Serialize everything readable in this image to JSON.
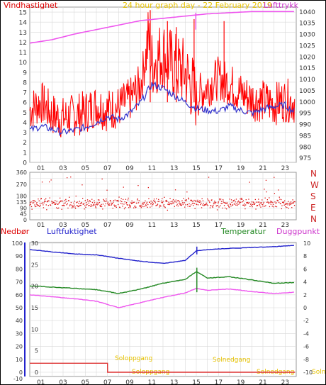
{
  "colors": {
    "wind_speed": "#ff0000",
    "wind_avg": "#3333cc",
    "pressure": "#ee55ee",
    "direction": "#dd1111",
    "humidity": "#2222cc",
    "temperature": "#228822",
    "dewpoint": "#ee55ee",
    "precip": "#2222cc",
    "sun_annotation": "#e6c200",
    "grid": "#d8d8d8"
  },
  "chart_data": [
    {
      "type": "line",
      "title": "24 hour graph day - 22 February 2019",
      "ylabel_left": "Vindhastighet",
      "ylabel_right": "Lufttrykk",
      "left_ticks": [
        "15",
        "14",
        "13",
        "12",
        "11",
        "10",
        "9",
        "8",
        "7",
        "6",
        "5",
        "4",
        "3",
        "2",
        "1",
        "0"
      ],
      "right_ticks": [
        "1040",
        "1035",
        "1030",
        "1025",
        "1020",
        "1015",
        "1010",
        "1005",
        "1000",
        "995",
        "990",
        "985",
        "980",
        "975"
      ],
      "x_ticks": [
        "01",
        "03",
        "05",
        "07",
        "09",
        "11",
        "13",
        "15",
        "17",
        "19",
        "21",
        "23"
      ],
      "ylim_left": [
        0,
        15.5
      ],
      "ylim_right": [
        973,
        1042
      ],
      "series": [
        {
          "name": "Vindhastighet",
          "x": [
            0,
            1,
            2,
            3,
            4,
            5,
            6,
            7,
            8,
            9,
            10,
            10.7,
            11,
            12,
            13,
            14,
            15,
            16,
            17,
            18,
            19,
            20,
            21,
            22,
            23,
            23.9
          ],
          "values": [
            5.0,
            5.8,
            4.6,
            4.2,
            4.5,
            4.8,
            5.5,
            5.0,
            5.3,
            6.0,
            7.6,
            12.0,
            9.5,
            10.5,
            9.2,
            8.6,
            6.2,
            7.4,
            8.2,
            7.6,
            6.7,
            6.1,
            5.9,
            5.6,
            6.0,
            5.8
          ]
        },
        {
          "name": "Vindgjennomsnitt",
          "x": [
            0,
            1,
            2,
            3,
            4,
            5,
            6,
            7,
            8,
            9,
            10,
            11,
            12,
            13,
            14,
            15,
            16,
            17,
            18,
            19,
            20,
            21,
            22,
            23,
            23.9
          ],
          "values": [
            3.2,
            3.6,
            3.3,
            3.0,
            3.2,
            3.5,
            4.0,
            4.6,
            4.3,
            4.9,
            6.0,
            7.8,
            7.4,
            6.7,
            6.0,
            5.4,
            5.2,
            5.1,
            5.6,
            5.2,
            4.9,
            5.3,
            5.6,
            5.7,
            5.0
          ]
        },
        {
          "name": "Lufttrykk",
          "x": [
            0,
            2,
            4,
            6,
            8,
            10,
            12,
            14,
            16,
            18,
            20,
            22,
            23.9
          ],
          "values": [
            1026,
            1027.5,
            1030,
            1032,
            1034,
            1036,
            1037,
            1038,
            1039,
            1039.5,
            1040,
            1040,
            1040
          ]
        }
      ]
    },
    {
      "type": "scatter",
      "ylabel": "Vindretning",
      "y_ticks": [
        "360",
        "270",
        "180",
        "135",
        "90",
        "45",
        "0"
      ],
      "direction_labels": [
        "N",
        "W",
        "S",
        "E",
        "N"
      ],
      "ylim": [
        0,
        360
      ],
      "x_ticks": [
        "01",
        "03",
        "05",
        "07",
        "09",
        "11",
        "13",
        "15",
        "17",
        "19",
        "21",
        "23"
      ],
      "band_center_deg": 125,
      "band_spread_deg": 40
    },
    {
      "type": "line",
      "ylabels": [
        "Nedbør",
        "Luftfuktighet",
        "Temperatur",
        "Duggpunkt"
      ],
      "precip_ticks": [
        "100",
        "90",
        "80",
        "70",
        "60",
        "50",
        "40",
        "30",
        "20",
        "10",
        "0",
        "-10"
      ],
      "humidity_ticks": [
        "30",
        "25",
        "20",
        "15",
        "10",
        "5",
        "0"
      ],
      "temp_ticks": [
        "10",
        "8",
        "6",
        "4",
        "2",
        "0",
        "-2",
        "-4",
        "-6",
        "-8",
        "-10"
      ],
      "x_ticks": [
        "01",
        "03",
        "05",
        "07",
        "09",
        "11",
        "13",
        "15",
        "17",
        "19",
        "21",
        "23"
      ],
      "annotations": [
        "Soloppgang",
        "Solnedgang",
        "Soloppgang",
        "Solnedgang",
        "Solnedgang"
      ],
      "series": [
        {
          "name": "Luftfuktighet",
          "x": [
            0,
            2,
            4,
            6,
            8,
            10,
            12,
            14,
            15,
            16,
            18,
            20,
            22,
            23.9
          ],
          "values": [
            28.5,
            28,
            27.5,
            27.3,
            26.5,
            25.8,
            25.3,
            26.0,
            28.2,
            28.5,
            28.8,
            29.0,
            29.2,
            29.5
          ]
        },
        {
          "name": "Temperatur",
          "x": [
            0,
            2,
            4,
            6,
            8,
            10,
            12,
            14,
            15,
            16,
            18,
            20,
            22,
            23.9
          ],
          "values": [
            3.4,
            3.2,
            3.0,
            2.8,
            2.2,
            2.9,
            3.8,
            4.4,
            5.6,
            4.6,
            4.8,
            4.3,
            3.8,
            3.9
          ]
        },
        {
          "name": "Duggpunkt",
          "x": [
            0,
            2,
            4,
            6,
            8,
            10,
            12,
            14,
            15,
            16,
            18,
            20,
            22,
            23.9
          ],
          "values": [
            2.0,
            1.7,
            1.4,
            1.0,
            0.0,
            0.8,
            1.6,
            2.3,
            3.0,
            2.7,
            2.9,
            2.5,
            2.2,
            2.4
          ]
        },
        {
          "name": "Nedbør",
          "x": [
            0,
            7,
            7.01,
            23.9
          ],
          "values": [
            7,
            7,
            0,
            0
          ]
        }
      ]
    }
  ]
}
